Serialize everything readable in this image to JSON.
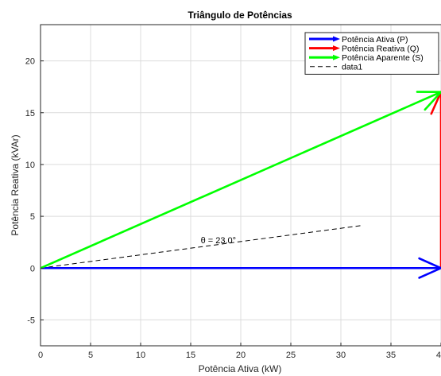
{
  "chart_data": {
    "type": "line",
    "title": "Triângulo de Potências",
    "xlabel": "Potência Ativa (kW)",
    "ylabel": "Potência Reativa (kVAr)",
    "xlim": [
      0,
      40
    ],
    "ylim": [
      -7.5,
      23.5
    ],
    "xticks": [
      0,
      5,
      10,
      15,
      20,
      25,
      30,
      35,
      40
    ],
    "xtick_labels": [
      "0",
      "5",
      "10",
      "15",
      "20",
      "25",
      "30",
      "35",
      "40"
    ],
    "yticks": [
      -5,
      0,
      5,
      10,
      15,
      20
    ],
    "ytick_labels": [
      "-5",
      "0",
      "5",
      "10",
      "15",
      "20"
    ],
    "grid": true,
    "legend_position": "top-right",
    "series": [
      {
        "name": "Potência Ativa (P)",
        "kind": "arrow",
        "color": "#0000ff",
        "x": [
          0,
          40
        ],
        "y": [
          0,
          0
        ]
      },
      {
        "name": "Potência Reativa (Q)",
        "kind": "arrow",
        "color": "#ff0000",
        "x": [
          40,
          40
        ],
        "y": [
          0,
          17
        ]
      },
      {
        "name": "Potência Aparente (S)",
        "kind": "arrow",
        "color": "#00ff00",
        "x": [
          0,
          40
        ],
        "y": [
          0,
          17
        ]
      },
      {
        "name": "data1",
        "kind": "dashed",
        "color": "#000000",
        "x": [
          0,
          32
        ],
        "y": [
          0,
          4.1
        ]
      }
    ],
    "annotations": [
      {
        "text": "θ = 23.0°",
        "x": 16,
        "y": 2.4
      }
    ]
  }
}
